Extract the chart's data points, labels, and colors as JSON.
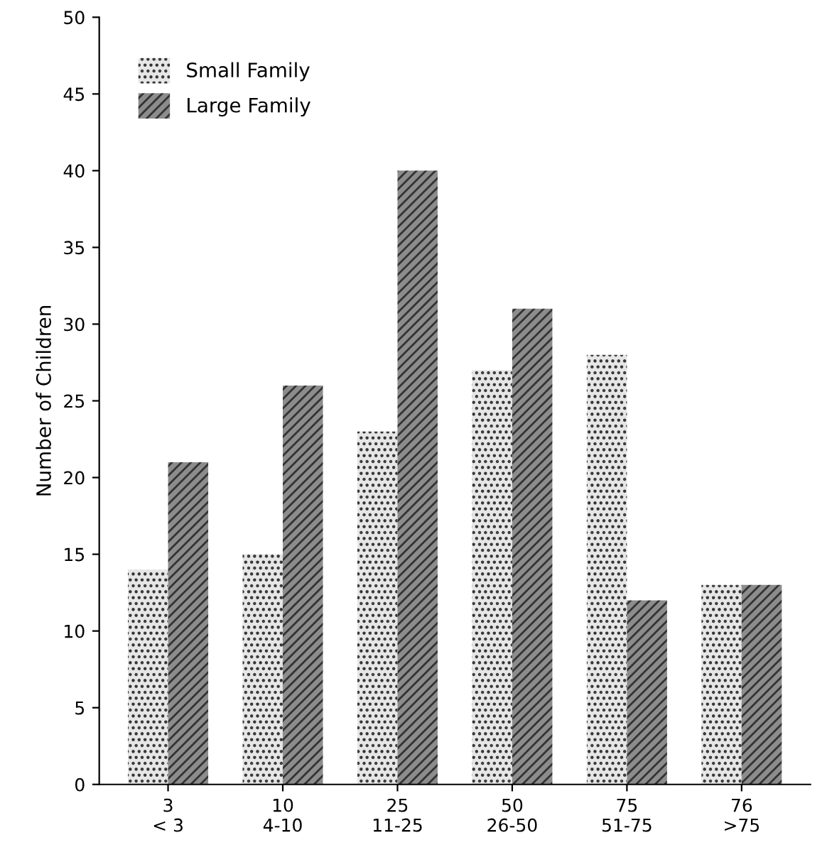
{
  "chart_data": {
    "type": "bar",
    "ylabel": "Number of Children",
    "categories": [
      "3\n< 3",
      "10\n4-10",
      "25\n11-25",
      "50\n26-50",
      "75\n51-75",
      "76\n>75"
    ],
    "series": [
      {
        "name": "Small Family",
        "color": "#e6e6e6",
        "values": [
          14,
          15,
          23,
          27,
          28,
          13
        ]
      },
      {
        "name": "Large Family",
        "color": "#8c8c8c",
        "values": [
          21,
          26,
          40,
          31,
          12,
          13
        ]
      }
    ],
    "ylim": [
      0,
      50
    ],
    "yticks": [
      0,
      5,
      10,
      15,
      20,
      25,
      30,
      35,
      40,
      45,
      50
    ],
    "grid": false,
    "legend": "top left"
  }
}
